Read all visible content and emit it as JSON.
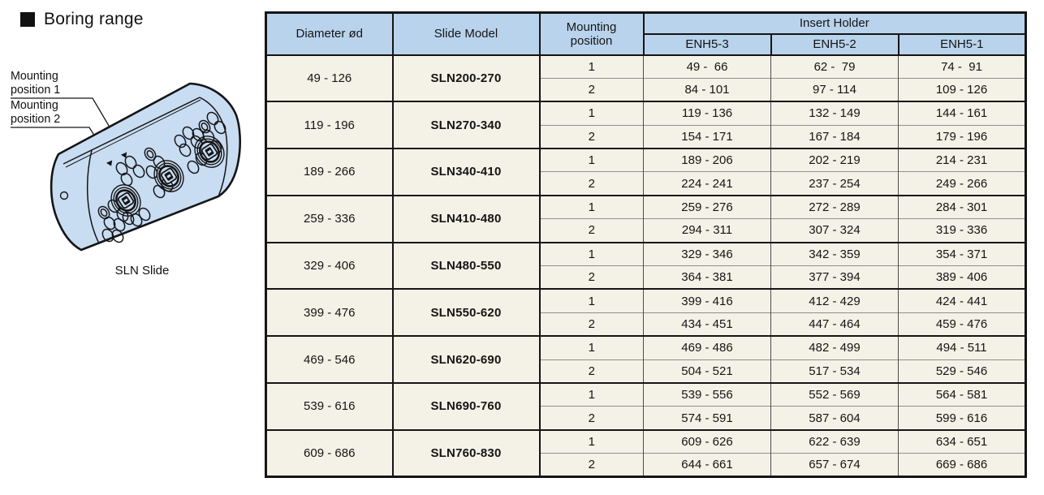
{
  "heading": {
    "title": "Boring range"
  },
  "illustration": {
    "caption": "SLN Slide",
    "label1_line1": "Mounting",
    "label1_line2": "position 1",
    "label2_line1": "Mounting",
    "label2_line2": "position 2"
  },
  "table": {
    "header": {
      "diameter": "Diameter ød",
      "slide_model": "Slide Model",
      "mounting_position": "Mounting position",
      "insert_holder": "Insert Holder",
      "insert_models": [
        "ENH5-3",
        "ENH5-2",
        "ENH5-1"
      ]
    },
    "groups": [
      {
        "diameter": "49 - 126",
        "model": "SLN200-270",
        "rows": [
          {
            "position": "1",
            "enh5_3": "49 -  66",
            "enh5_2": "62 -  79",
            "enh5_1": "74 -  91"
          },
          {
            "position": "2",
            "enh5_3": "84 - 101",
            "enh5_2": "97 - 114",
            "enh5_1": "109 - 126"
          }
        ]
      },
      {
        "diameter": "119 - 196",
        "model": "SLN270-340",
        "rows": [
          {
            "position": "1",
            "enh5_3": "119 - 136",
            "enh5_2": "132 - 149",
            "enh5_1": "144 - 161"
          },
          {
            "position": "2",
            "enh5_3": "154 - 171",
            "enh5_2": "167 - 184",
            "enh5_1": "179 - 196"
          }
        ]
      },
      {
        "diameter": "189 - 266",
        "model": "SLN340-410",
        "rows": [
          {
            "position": "1",
            "enh5_3": "189 - 206",
            "enh5_2": "202 - 219",
            "enh5_1": "214 - 231"
          },
          {
            "position": "2",
            "enh5_3": "224 - 241",
            "enh5_2": "237 - 254",
            "enh5_1": "249 - 266"
          }
        ]
      },
      {
        "diameter": "259 - 336",
        "model": "SLN410-480",
        "rows": [
          {
            "position": "1",
            "enh5_3": "259 - 276",
            "enh5_2": "272 - 289",
            "enh5_1": "284 - 301"
          },
          {
            "position": "2",
            "enh5_3": "294 - 311",
            "enh5_2": "307 - 324",
            "enh5_1": "319 - 336"
          }
        ]
      },
      {
        "diameter": "329 - 406",
        "model": "SLN480-550",
        "rows": [
          {
            "position": "1",
            "enh5_3": "329 - 346",
            "enh5_2": "342 - 359",
            "enh5_1": "354 - 371"
          },
          {
            "position": "2",
            "enh5_3": "364 - 381",
            "enh5_2": "377 - 394",
            "enh5_1": "389 - 406"
          }
        ]
      },
      {
        "diameter": "399 - 476",
        "model": "SLN550-620",
        "rows": [
          {
            "position": "1",
            "enh5_3": "399 - 416",
            "enh5_2": "412 - 429",
            "enh5_1": "424 - 441"
          },
          {
            "position": "2",
            "enh5_3": "434 - 451",
            "enh5_2": "447 - 464",
            "enh5_1": "459 - 476"
          }
        ]
      },
      {
        "diameter": "469 - 546",
        "model": "SLN620-690",
        "rows": [
          {
            "position": "1",
            "enh5_3": "469 - 486",
            "enh5_2": "482 - 499",
            "enh5_1": "494 - 511"
          },
          {
            "position": "2",
            "enh5_3": "504 - 521",
            "enh5_2": "517 - 534",
            "enh5_1": "529 - 546"
          }
        ]
      },
      {
        "diameter": "539 - 616",
        "model": "SLN690-760",
        "rows": [
          {
            "position": "1",
            "enh5_3": "539 - 556",
            "enh5_2": "552 - 569",
            "enh5_1": "564 - 581"
          },
          {
            "position": "2",
            "enh5_3": "574 - 591",
            "enh5_2": "587 - 604",
            "enh5_1": "599 - 616"
          }
        ]
      },
      {
        "diameter": "609 - 686",
        "model": "SLN760-830",
        "rows": [
          {
            "position": "1",
            "enh5_3": "609 - 626",
            "enh5_2": "622 - 639",
            "enh5_1": "634 - 651"
          },
          {
            "position": "2",
            "enh5_3": "644 - 661",
            "enh5_2": "657 - 674",
            "enh5_1": "669 - 686"
          }
        ]
      }
    ]
  },
  "colors": {
    "header_bg": "#b9d3ec",
    "model_bg": "#d8ecf9",
    "cell_bg": "#f4f1e6",
    "slide_fill": "#c8dcf2",
    "border_dark": "#151515"
  }
}
